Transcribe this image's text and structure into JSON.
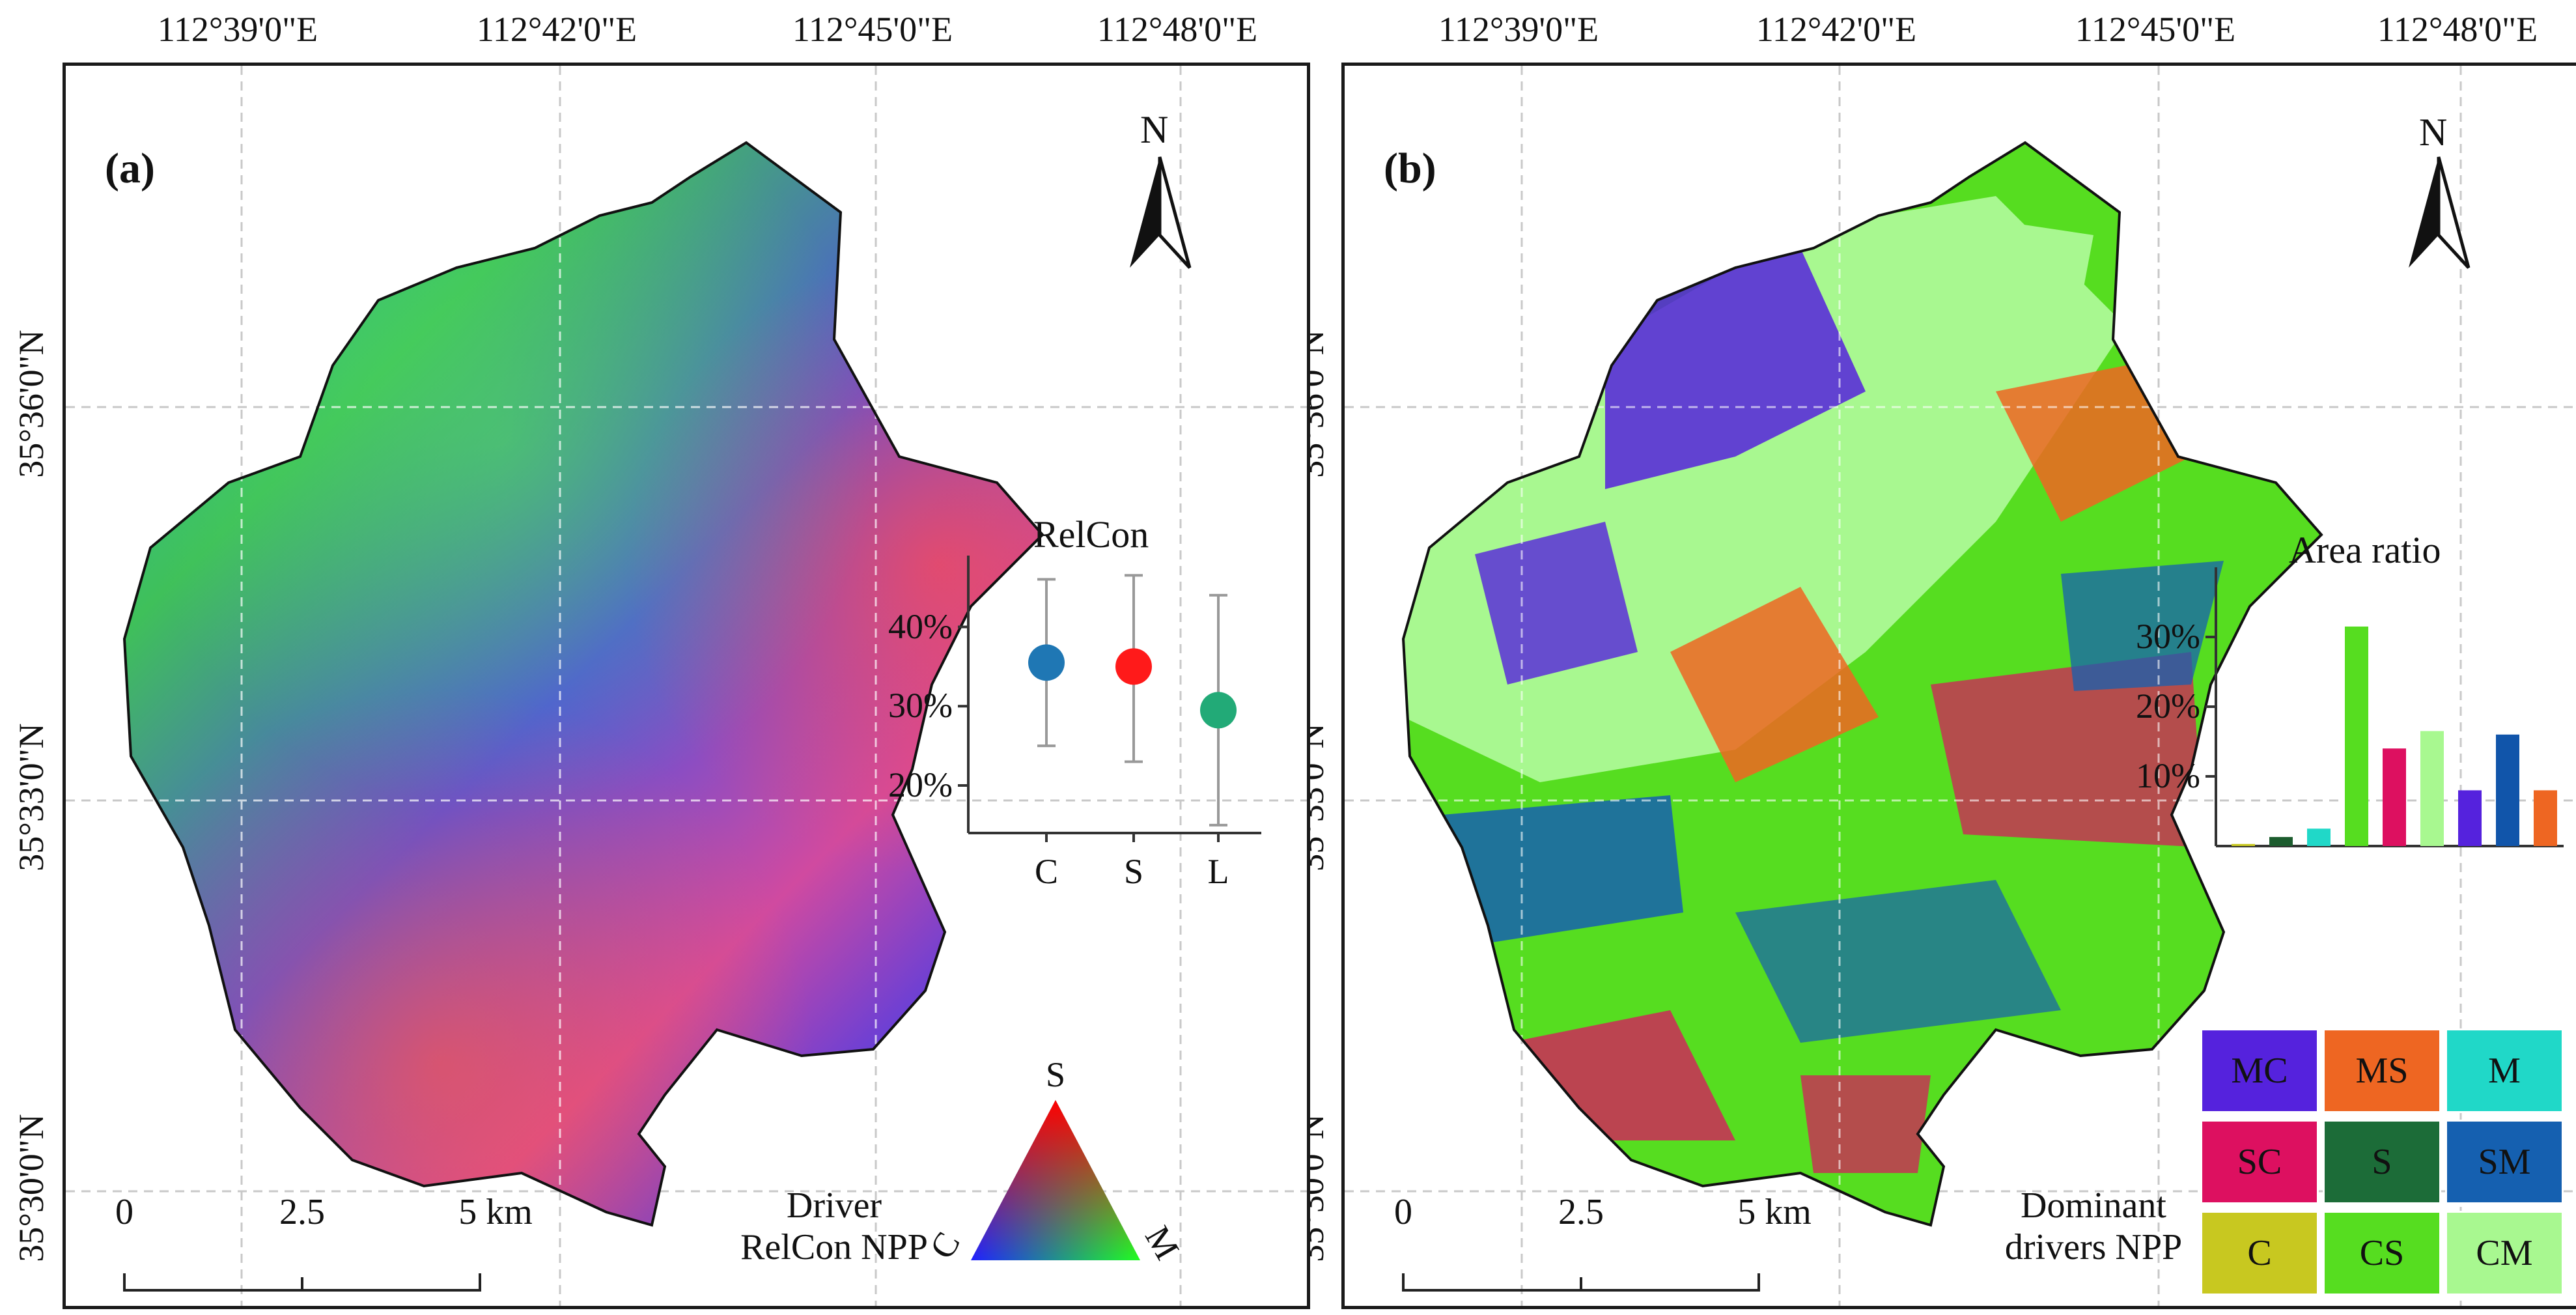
{
  "panels": {
    "a": {
      "label": "(a)",
      "description_line1": "Driver",
      "description_line2": "RelCon NPP"
    },
    "b": {
      "label": "(b)",
      "description_line1": "Dominant",
      "description_line2": "drivers NPP"
    }
  },
  "axes": {
    "longitudes": [
      "112°39'0\"E",
      "112°42'0\"E",
      "112°45'0\"E",
      "112°48'0\"E"
    ],
    "latitudes": [
      "35°36'0\"N",
      "35°33'0\"N",
      "35°30'0\"N"
    ]
  },
  "north_arrow": {
    "letter": "N"
  },
  "scale_bar": {
    "labels": [
      "0",
      "2.5",
      "5 km"
    ]
  },
  "triangle_legend": {
    "top": "S",
    "left": "C",
    "right": "M",
    "colors": {
      "top": "#ff0000",
      "left": "#2020ff",
      "right": "#20ff20"
    }
  },
  "chart_data": [
    {
      "type": "scatter",
      "title": "RelCon",
      "categories": [
        "C",
        "S",
        "L"
      ],
      "values": [
        35.5,
        35,
        29.5
      ],
      "error_low": [
        25,
        23,
        15
      ],
      "error_high": [
        46,
        46.5,
        44
      ],
      "colors": [
        "#1f77b4",
        "#ff1a1a",
        "#22aa77"
      ],
      "yticks": [
        "20%",
        "30%",
        "40%"
      ],
      "ylim": [
        14,
        49
      ]
    },
    {
      "type": "bar",
      "title": "Area ratio",
      "categories": [
        "C",
        "S",
        "M",
        "CS",
        "SC",
        "CM",
        "MC",
        "SM",
        "MS"
      ],
      "values": [
        0.3,
        1.3,
        2.5,
        31.5,
        14,
        16.5,
        8,
        16,
        8
      ],
      "colors": [
        "#c8c820",
        "#1c5c2e",
        "#20d8c8",
        "#56dd20",
        "#dd1060",
        "#a8f890",
        "#5522dd",
        "#1155aa",
        "#ee6622"
      ],
      "yticks": [
        "10%",
        "20%",
        "30%"
      ],
      "ylim": [
        0,
        40
      ]
    }
  ],
  "dominant_legend": [
    {
      "label": "MC",
      "color": "#5522dd"
    },
    {
      "label": "MS",
      "color": "#ee6622"
    },
    {
      "label": "M",
      "color": "#20d8c8"
    },
    {
      "label": "SC",
      "color": "#dd1060"
    },
    {
      "label": "S",
      "color": "#1c6c38"
    },
    {
      "label": "SM",
      "color": "#1560b0"
    },
    {
      "label": "C",
      "color": "#c8c820"
    },
    {
      "label": "CS",
      "color": "#56dd20"
    },
    {
      "label": "CM",
      "color": "#a8f890"
    }
  ]
}
